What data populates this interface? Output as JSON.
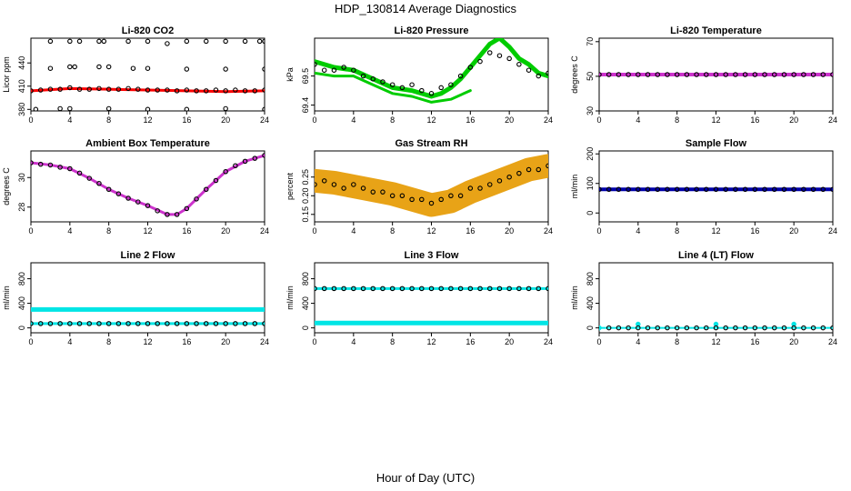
{
  "page": {
    "title": "HDP_130814  Average Diagnostics",
    "xlabel": "Hour of Day (UTC)"
  },
  "colors": {
    "co2": "#ff0000",
    "pressure": "#00cc00",
    "li_temp": "#cc33cc",
    "ambient": "#cc33cc",
    "rh": "#e8a317",
    "sample_flow": "#0000aa",
    "line_flow": "#00e5e5",
    "points": "#000000"
  },
  "chart_data": [
    {
      "type": "scatter",
      "title": "Li-820 CO2",
      "ylabel": "Licor ppm",
      "xlim": [
        0,
        24
      ],
      "ylim": [
        378,
        472
      ],
      "xticks": [
        0,
        4,
        8,
        12,
        16,
        20,
        24
      ],
      "yticks": [
        380,
        410,
        440
      ],
      "grid": false,
      "series": [
        {
          "kind": "band",
          "x": [
            0,
            4,
            8,
            12,
            16,
            20,
            24
          ],
          "y": [
            404,
            407,
            406,
            405,
            404,
            403,
            404
          ],
          "width": 3
        },
        {
          "kind": "points",
          "x": [
            2,
            4,
            5,
            7,
            7.5,
            10,
            12,
            14,
            16,
            18,
            20,
            22,
            23.5,
            24
          ],
          "y": [
            468,
            468,
            468,
            468,
            468,
            468,
            468,
            465,
            468,
            468,
            468,
            468,
            468,
            468
          ]
        },
        {
          "kind": "points",
          "x": [
            2,
            4,
            4.5,
            7,
            8,
            10.5,
            12,
            16,
            20,
            24
          ],
          "y": [
            433,
            435,
            435,
            435,
            435,
            433,
            433,
            432,
            432,
            432
          ]
        },
        {
          "kind": "points",
          "x": [
            0,
            1,
            2,
            3,
            4,
            5,
            6,
            7,
            8,
            9,
            10,
            11,
            12,
            13,
            14,
            15,
            16,
            17,
            18,
            19,
            20,
            21,
            22,
            23,
            24
          ],
          "y": [
            404,
            405,
            406,
            406,
            408,
            406,
            406,
            407,
            406,
            406,
            407,
            406,
            405,
            405,
            405,
            404,
            405,
            404,
            404,
            405,
            404,
            405,
            404,
            404,
            405
          ]
        },
        {
          "kind": "points",
          "x": [
            0.5,
            3,
            4,
            8,
            12,
            16,
            20,
            24
          ],
          "y": [
            380,
            381,
            381,
            381,
            380,
            380,
            381,
            380
          ]
        }
      ]
    },
    {
      "type": "scatter",
      "title": "Li-820 Pressure",
      "ylabel": "kPa",
      "xlim": [
        0,
        24
      ],
      "ylim": [
        69.38,
        69.63
      ],
      "xticks": [
        0,
        4,
        8,
        12,
        16,
        20,
        24
      ],
      "yticks": [
        69.4,
        69.5
      ],
      "grid": false,
      "series": [
        {
          "kind": "band",
          "x": [
            0,
            2,
            4,
            6,
            8,
            10,
            12,
            13,
            14,
            15,
            16,
            17,
            18,
            19,
            20,
            21,
            22,
            23,
            24
          ],
          "y": [
            69.55,
            69.53,
            69.52,
            69.49,
            69.46,
            69.45,
            69.43,
            69.44,
            69.46,
            69.49,
            69.53,
            69.57,
            69.61,
            69.63,
            69.6,
            69.56,
            69.54,
            69.51,
            69.5
          ],
          "width": 5
        },
        {
          "kind": "band",
          "x": [
            0,
            2,
            4,
            6,
            8,
            10,
            12,
            14,
            16
          ],
          "y": [
            69.51,
            69.5,
            69.5,
            69.47,
            69.44,
            69.43,
            69.41,
            69.42,
            69.45
          ],
          "width": 3
        },
        {
          "kind": "points",
          "x": [
            0,
            1,
            2,
            3,
            4,
            5,
            6,
            7,
            8,
            9,
            10,
            11,
            12,
            13,
            14,
            15,
            16,
            17,
            18,
            19,
            20,
            21,
            22,
            23,
            24
          ],
          "y": [
            69.54,
            69.52,
            69.52,
            69.53,
            69.52,
            69.5,
            69.49,
            69.48,
            69.47,
            69.46,
            69.47,
            69.45,
            69.44,
            69.46,
            69.47,
            69.5,
            69.53,
            69.55,
            69.58,
            69.57,
            69.56,
            69.54,
            69.52,
            69.5,
            69.51
          ]
        }
      ]
    },
    {
      "type": "scatter",
      "title": "Li-820 Temperature",
      "ylabel": "degrees C",
      "xlim": [
        0,
        24
      ],
      "ylim": [
        30,
        72
      ],
      "xticks": [
        0,
        4,
        8,
        12,
        16,
        20,
        24
      ],
      "yticks": [
        30,
        50,
        70
      ],
      "grid": false,
      "series": [
        {
          "kind": "band",
          "x": [
            0,
            24
          ],
          "y": [
            51,
            51
          ],
          "width": 4
        },
        {
          "kind": "points",
          "x": [
            0,
            1,
            2,
            3,
            4,
            5,
            6,
            7,
            8,
            9,
            10,
            11,
            12,
            13,
            14,
            15,
            16,
            17,
            18,
            19,
            20,
            21,
            22,
            23,
            24
          ],
          "y": [
            51,
            51,
            51,
            51,
            51,
            51,
            51,
            51,
            51,
            51,
            51,
            51,
            51,
            51,
            51,
            51,
            51,
            51,
            51,
            51,
            51,
            51,
            51,
            51,
            51
          ]
        }
      ]
    },
    {
      "type": "scatter",
      "title": "Ambient Box Temperature",
      "ylabel": "degrees C",
      "xlim": [
        0,
        24
      ],
      "ylim": [
        27,
        31.8
      ],
      "xticks": [
        0,
        4,
        8,
        12,
        16,
        20,
        24
      ],
      "yticks": [
        28,
        30
      ],
      "grid": false,
      "series": [
        {
          "kind": "band",
          "x": [
            0,
            2,
            4,
            6,
            8,
            10,
            12,
            14,
            15,
            16,
            18,
            20,
            22,
            24
          ],
          "y": [
            31.0,
            30.85,
            30.6,
            29.95,
            29.2,
            28.6,
            28.1,
            27.5,
            27.5,
            27.9,
            29.2,
            30.4,
            31.1,
            31.5
          ],
          "width": 3
        },
        {
          "kind": "points",
          "x": [
            0,
            1,
            2,
            3,
            4,
            5,
            6,
            7,
            8,
            9,
            10,
            11,
            12,
            13,
            14,
            15,
            16,
            17,
            18,
            19,
            20,
            21,
            22,
            23,
            24
          ],
          "y": [
            31.0,
            30.9,
            30.85,
            30.7,
            30.6,
            30.3,
            29.95,
            29.6,
            29.2,
            28.9,
            28.6,
            28.35,
            28.1,
            27.75,
            27.5,
            27.5,
            27.9,
            28.55,
            29.2,
            29.8,
            30.4,
            30.8,
            31.1,
            31.3,
            31.5
          ]
        }
      ]
    },
    {
      "type": "scatter",
      "title": "Gas Stream RH",
      "ylabel": "percent",
      "xlim": [
        0,
        24
      ],
      "ylim": [
        0.13,
        0.32
      ],
      "xticks": [
        0,
        4,
        8,
        12,
        16,
        20,
        24
      ],
      "yticks": [
        0.15,
        0.2,
        0.25
      ],
      "grid": false,
      "series": [
        {
          "kind": "band",
          "x": [
            0,
            2,
            4,
            6,
            8,
            10,
            12,
            14,
            16,
            18,
            20,
            22,
            24
          ],
          "y": [
            0.24,
            0.235,
            0.225,
            0.215,
            0.205,
            0.19,
            0.175,
            0.185,
            0.21,
            0.23,
            0.25,
            0.27,
            0.28
          ],
          "width": 26
        },
        {
          "kind": "points",
          "x": [
            0,
            1,
            2,
            3,
            4,
            5,
            6,
            7,
            8,
            9,
            10,
            11,
            12,
            13,
            14,
            15,
            16,
            17,
            18,
            19,
            20,
            21,
            22,
            23,
            24
          ],
          "y": [
            0.23,
            0.24,
            0.23,
            0.22,
            0.23,
            0.22,
            0.21,
            0.21,
            0.2,
            0.2,
            0.19,
            0.19,
            0.18,
            0.19,
            0.2,
            0.2,
            0.22,
            0.22,
            0.23,
            0.24,
            0.25,
            0.26,
            0.27,
            0.27,
            0.28
          ]
        }
      ]
    },
    {
      "type": "scatter",
      "title": "Sample Flow",
      "ylabel": "ml/min",
      "xlim": [
        0,
        24
      ],
      "ylim": [
        -30,
        210
      ],
      "xticks": [
        0,
        4,
        8,
        12,
        16,
        20,
        24
      ],
      "yticks": [
        0,
        100,
        200
      ],
      "grid": false,
      "series": [
        {
          "kind": "band",
          "x": [
            0,
            24
          ],
          "y": [
            80,
            80
          ],
          "width": 4
        },
        {
          "kind": "points",
          "x": [
            0,
            1,
            2,
            3,
            4,
            5,
            6,
            7,
            8,
            9,
            10,
            11,
            12,
            13,
            14,
            15,
            16,
            17,
            18,
            19,
            20,
            21,
            22,
            23,
            24
          ],
          "y": [
            80,
            80,
            80,
            80,
            80,
            80,
            80,
            80,
            80,
            80,
            80,
            80,
            80,
            80,
            80,
            80,
            80,
            80,
            80,
            80,
            80,
            80,
            80,
            80,
            80
          ]
        }
      ]
    },
    {
      "type": "scatter",
      "title": "Line 2 Flow",
      "ylabel": "ml/min",
      "xlim": [
        0,
        24
      ],
      "ylim": [
        -80,
        1060
      ],
      "xticks": [
        0,
        4,
        8,
        12,
        16,
        20,
        24
      ],
      "yticks": [
        0,
        400,
        800
      ],
      "grid": false,
      "series": [
        {
          "kind": "band",
          "x": [
            0,
            24
          ],
          "y": [
            300,
            300
          ],
          "width": 5
        },
        {
          "kind": "band",
          "x": [
            0,
            24
          ],
          "y": [
            70,
            70
          ],
          "width": 3
        },
        {
          "kind": "points",
          "x": [
            0,
            1,
            2,
            3,
            4,
            5,
            6,
            7,
            8,
            9,
            10,
            11,
            12,
            13,
            14,
            15,
            16,
            17,
            18,
            19,
            20,
            21,
            22,
            23,
            24
          ],
          "y": [
            70,
            70,
            70,
            70,
            70,
            70,
            70,
            70,
            70,
            70,
            70,
            70,
            70,
            70,
            70,
            70,
            70,
            70,
            70,
            70,
            70,
            70,
            70,
            70,
            70
          ]
        }
      ]
    },
    {
      "type": "scatter",
      "title": "Line 3 Flow",
      "ylabel": "ml/min",
      "xlim": [
        0,
        24
      ],
      "ylim": [
        -80,
        1060
      ],
      "xticks": [
        0,
        4,
        8,
        12,
        16,
        20,
        24
      ],
      "yticks": [
        0,
        400,
        800
      ],
      "grid": false,
      "series": [
        {
          "kind": "band",
          "x": [
            0,
            24
          ],
          "y": [
            640,
            640
          ],
          "width": 3
        },
        {
          "kind": "band",
          "x": [
            0,
            24
          ],
          "y": [
            80,
            80
          ],
          "width": 5
        },
        {
          "kind": "points",
          "x": [
            0,
            1,
            2,
            3,
            4,
            5,
            6,
            7,
            8,
            9,
            10,
            11,
            12,
            13,
            14,
            15,
            16,
            17,
            18,
            19,
            20,
            21,
            22,
            23,
            24
          ],
          "y": [
            640,
            640,
            640,
            640,
            640,
            640,
            640,
            640,
            640,
            640,
            640,
            640,
            640,
            640,
            640,
            640,
            640,
            640,
            640,
            640,
            640,
            640,
            640,
            640,
            640
          ]
        }
      ]
    },
    {
      "type": "scatter",
      "title": "Line 4 (LT) Flow",
      "ylabel": "ml/min",
      "xlim": [
        0,
        24
      ],
      "ylim": [
        -80,
        1060
      ],
      "xticks": [
        0,
        4,
        8,
        12,
        16,
        20,
        24
      ],
      "yticks": [
        0,
        400,
        800
      ],
      "grid": false,
      "series": [
        {
          "kind": "band",
          "x": [
            0,
            24
          ],
          "y": [
            0,
            0
          ],
          "width": 2
        },
        {
          "kind": "points",
          "x": [
            0,
            4,
            12,
            20
          ],
          "y": [
            0,
            60,
            60,
            60
          ],
          "colorKey": "line_flow"
        },
        {
          "kind": "points",
          "x": [
            1,
            2,
            3,
            4,
            5,
            6,
            7,
            8,
            9,
            10,
            11,
            12,
            13,
            14,
            15,
            16,
            17,
            18,
            19,
            20,
            21,
            22,
            23,
            24
          ],
          "y": [
            0,
            0,
            0,
            0,
            0,
            0,
            0,
            0,
            0,
            0,
            0,
            0,
            0,
            0,
            0,
            0,
            0,
            0,
            0,
            0,
            0,
            0,
            0,
            0
          ]
        }
      ]
    }
  ]
}
